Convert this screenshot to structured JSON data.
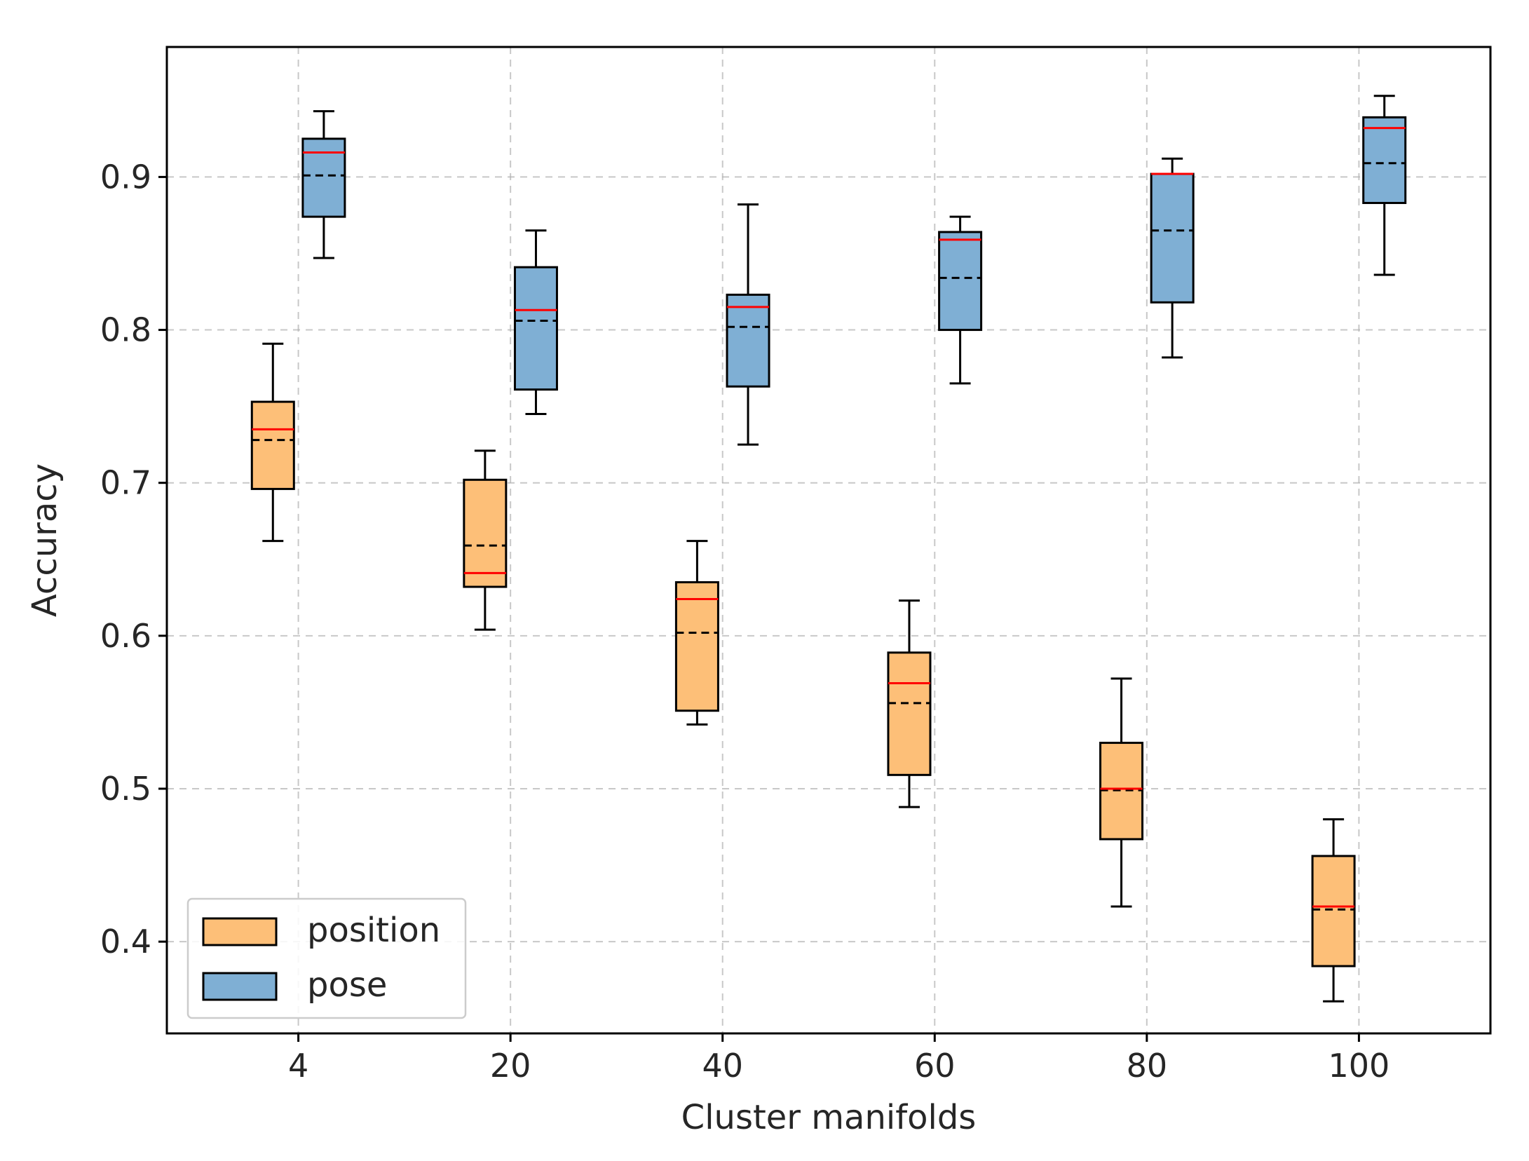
{
  "chart_data": {
    "type": "box",
    "title": "",
    "xlabel": "Cluster manifolds",
    "ylabel": "Accuracy",
    "ylim": [
      0.34,
      0.985
    ],
    "xlim": [
      -0.62,
      5.62
    ],
    "categories": [
      "4",
      "20",
      "40",
      "60",
      "80",
      "100"
    ],
    "yticks": [
      0.4,
      0.5,
      0.6,
      0.7,
      0.8,
      0.9
    ],
    "ytick_labels": [
      "0.4",
      "0.5",
      "0.6",
      "0.7",
      "0.8",
      "0.9"
    ],
    "grid": true,
    "legend_position": "lower-left",
    "median_line_style": "solid red",
    "mean_line_style": "dashed black",
    "series": [
      {
        "name": "position",
        "color": "#fdbf78",
        "offset": -0.12,
        "boxes": [
          {
            "category": "4",
            "whislo": 0.662,
            "q1": 0.696,
            "median": 0.735,
            "mean": 0.728,
            "q3": 0.753,
            "whishi": 0.791
          },
          {
            "category": "20",
            "whislo": 0.604,
            "q1": 0.632,
            "median": 0.641,
            "mean": 0.659,
            "q3": 0.702,
            "whishi": 0.721
          },
          {
            "category": "40",
            "whislo": 0.542,
            "q1": 0.551,
            "median": 0.624,
            "mean": 0.602,
            "q3": 0.635,
            "whishi": 0.662
          },
          {
            "category": "60",
            "whislo": 0.488,
            "q1": 0.509,
            "median": 0.569,
            "mean": 0.556,
            "q3": 0.589,
            "whishi": 0.623
          },
          {
            "category": "80",
            "whislo": 0.423,
            "q1": 0.467,
            "median": 0.5,
            "mean": 0.499,
            "q3": 0.53,
            "whishi": 0.572
          },
          {
            "category": "100",
            "whislo": 0.361,
            "q1": 0.384,
            "median": 0.423,
            "mean": 0.421,
            "q3": 0.456,
            "whishi": 0.48
          }
        ]
      },
      {
        "name": "pose",
        "color": "#7fafd4",
        "offset": 0.12,
        "boxes": [
          {
            "category": "4",
            "whislo": 0.847,
            "q1": 0.874,
            "median": 0.916,
            "mean": 0.901,
            "q3": 0.925,
            "whishi": 0.943
          },
          {
            "category": "20",
            "whislo": 0.745,
            "q1": 0.761,
            "median": 0.813,
            "mean": 0.806,
            "q3": 0.841,
            "whishi": 0.865
          },
          {
            "category": "40",
            "whislo": 0.725,
            "q1": 0.763,
            "median": 0.815,
            "mean": 0.802,
            "q3": 0.823,
            "whishi": 0.882
          },
          {
            "category": "60",
            "whislo": 0.765,
            "q1": 0.8,
            "median": 0.859,
            "mean": 0.834,
            "q3": 0.864,
            "whishi": 0.874
          },
          {
            "category": "80",
            "whislo": 0.782,
            "q1": 0.818,
            "median": 0.902,
            "mean": 0.865,
            "q3": 0.902,
            "whishi": 0.912
          },
          {
            "category": "100",
            "whislo": 0.836,
            "q1": 0.883,
            "median": 0.932,
            "mean": 0.909,
            "q3": 0.939,
            "whishi": 0.953
          }
        ]
      }
    ],
    "legend": [
      {
        "label": "position",
        "color": "#fdbf78"
      },
      {
        "label": "pose",
        "color": "#7fafd4"
      }
    ]
  }
}
